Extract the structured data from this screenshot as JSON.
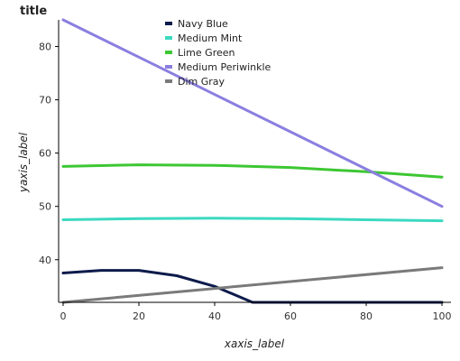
{
  "chart_data": {
    "type": "line",
    "title": "title",
    "xlabel": "xaxis_label",
    "ylabel": "yaxis_label",
    "xlim": [
      0,
      100
    ],
    "ylim": [
      32,
      85
    ],
    "xticks": [
      0,
      20,
      40,
      60,
      80,
      100
    ],
    "yticks": [
      40,
      50,
      60,
      70,
      80
    ],
    "grid": false,
    "legend_position": "right",
    "series": [
      {
        "name": "Navy Blue",
        "color": "#0d1b4b",
        "x": [
          0,
          10,
          20,
          30,
          40,
          50,
          60,
          70,
          80,
          90,
          100
        ],
        "y": [
          37.5,
          38.0,
          38.0,
          37.0,
          35.0,
          32.0,
          32.0,
          32.0,
          32.0,
          32.0,
          32.0
        ]
      },
      {
        "name": "Medium Mint",
        "color": "#3bd9c0",
        "x": [
          0,
          20,
          40,
          60,
          80,
          100
        ],
        "y": [
          47.5,
          47.7,
          47.8,
          47.7,
          47.5,
          47.3
        ]
      },
      {
        "name": "Lime Green",
        "color": "#3dc733",
        "x": [
          0,
          20,
          40,
          60,
          80,
          100
        ],
        "y": [
          57.5,
          57.8,
          57.7,
          57.3,
          56.5,
          55.5
        ]
      },
      {
        "name": "Medium Periwinkle",
        "color": "#8a7fe0",
        "x": [
          0,
          20,
          40,
          60,
          80,
          100
        ],
        "y": [
          85.0,
          78.0,
          71.0,
          64.0,
          57.0,
          50.0
        ]
      },
      {
        "name": "Dim Gray",
        "color": "#7a7a7a",
        "x": [
          0,
          100
        ],
        "y": [
          32.0,
          38.5
        ]
      }
    ]
  }
}
